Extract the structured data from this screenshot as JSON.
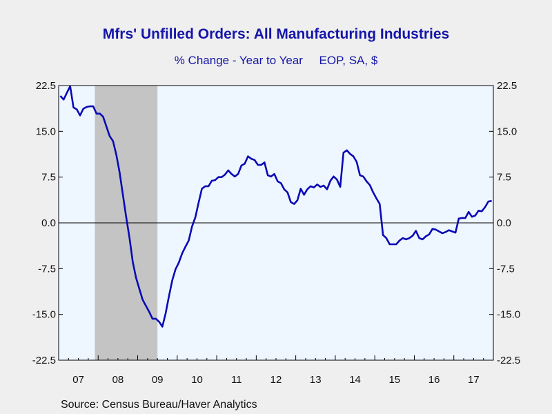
{
  "header": {
    "title": "Mfrs' Unfilled Orders: All Manufacturing Industries",
    "subtitle": "% Change - Year to Year     EOP, SA, $"
  },
  "footer": {
    "source": "Source:  Census Bureau/Haver Analytics"
  },
  "colors": {
    "background": "#efefef",
    "plot_background": "#eef6ff",
    "line": "#0a0ab4",
    "recession_shading": "#c4c4c4",
    "title": "#1515a8"
  },
  "chart_data": {
    "type": "line",
    "title": "Mfrs' Unfilled Orders: All Manufacturing Industries",
    "subtitle": "% Change - Year to Year     EOP, SA, $",
    "xlabel": "",
    "ylabel": "",
    "ylim": [
      -22.5,
      22.5
    ],
    "y_ticks": [
      22.5,
      15.0,
      7.5,
      0.0,
      -7.5,
      -15.0,
      -22.5
    ],
    "y_tick_labels": [
      "22.5",
      "15.0",
      "7.5",
      "0.0",
      "-7.5",
      "-15.0",
      "-22.5"
    ],
    "y_axis_both_sides": true,
    "zero_line": true,
    "x_range": [
      "2007-01",
      "2017-12"
    ],
    "x_tick_labels": [
      "07",
      "08",
      "09",
      "10",
      "11",
      "12",
      "13",
      "14",
      "15",
      "16",
      "17"
    ],
    "shaded_regions": [
      {
        "start": "2007-12",
        "end": "2009-06"
      }
    ],
    "series": [
      {
        "x": [
          "2007-01",
          "2007-02",
          "2007-03",
          "2007-04",
          "2007-05",
          "2007-06",
          "2007-07",
          "2007-08",
          "2007-09",
          "2007-10",
          "2007-11",
          "2007-12",
          "2008-01",
          "2008-02",
          "2008-03",
          "2008-04",
          "2008-05",
          "2008-06",
          "2008-07",
          "2008-08",
          "2008-09",
          "2008-10",
          "2008-11",
          "2008-12",
          "2009-01",
          "2009-02",
          "2009-03",
          "2009-04",
          "2009-05",
          "2009-06",
          "2009-07",
          "2009-08",
          "2009-09",
          "2009-10",
          "2009-11",
          "2009-12",
          "2010-01",
          "2010-02",
          "2010-03",
          "2010-04",
          "2010-05",
          "2010-06",
          "2010-07",
          "2010-08",
          "2010-09",
          "2010-10",
          "2010-11",
          "2010-12",
          "2011-01",
          "2011-02",
          "2011-03",
          "2011-04",
          "2011-05",
          "2011-06",
          "2011-07",
          "2011-08",
          "2011-09",
          "2011-10",
          "2011-11",
          "2011-12",
          "2012-01",
          "2012-02",
          "2012-03",
          "2012-04",
          "2012-05",
          "2012-06",
          "2012-07",
          "2012-08",
          "2012-09",
          "2012-10",
          "2012-11",
          "2012-12",
          "2013-01",
          "2013-02",
          "2013-03",
          "2013-04",
          "2013-05",
          "2013-06",
          "2013-07",
          "2013-08",
          "2013-09",
          "2013-10",
          "2013-11",
          "2013-12",
          "2014-01",
          "2014-02",
          "2014-03",
          "2014-04",
          "2014-05",
          "2014-06",
          "2014-07",
          "2014-08",
          "2014-09",
          "2014-10",
          "2014-11",
          "2014-12",
          "2015-01",
          "2015-02",
          "2015-03",
          "2015-04",
          "2015-05",
          "2015-06",
          "2015-07",
          "2015-08",
          "2015-09",
          "2015-10",
          "2015-11",
          "2015-12",
          "2016-01",
          "2016-02",
          "2016-03",
          "2016-04",
          "2016-05",
          "2016-06",
          "2016-07",
          "2016-08",
          "2016-09",
          "2016-10",
          "2016-11",
          "2016-12",
          "2017-01",
          "2017-02",
          "2017-03",
          "2017-04",
          "2017-05",
          "2017-06",
          "2017-07",
          "2017-08",
          "2017-09",
          "2017-10",
          "2017-11",
          "2017-12"
        ],
        "values": [
          20.8,
          20.2,
          21.3,
          22.4,
          18.9,
          18.6,
          17.6,
          18.7,
          19.0,
          19.1,
          19.1,
          17.9,
          17.9,
          17.4,
          15.8,
          14.2,
          13.4,
          11.2,
          8.3,
          4.6,
          1.0,
          -2.4,
          -6.4,
          -9.0,
          -10.8,
          -12.6,
          -13.6,
          -14.6,
          -15.7,
          -15.7,
          -16.2,
          -17.0,
          -14.8,
          -12.0,
          -9.4,
          -7.6,
          -6.5,
          -5.0,
          -3.9,
          -2.9,
          -0.6,
          0.9,
          3.3,
          5.6,
          6.0,
          6.0,
          6.9,
          7.0,
          7.5,
          7.5,
          7.9,
          8.6,
          8.0,
          7.6,
          8.0,
          9.4,
          9.7,
          10.9,
          10.5,
          10.3,
          9.5,
          9.5,
          9.9,
          7.8,
          7.6,
          8.0,
          6.8,
          6.5,
          5.5,
          5.0,
          3.4,
          3.1,
          3.7,
          5.6,
          4.6,
          5.5,
          6.0,
          5.8,
          6.3,
          5.9,
          6.1,
          5.5,
          6.9,
          7.6,
          7.1,
          5.9,
          11.5,
          11.9,
          11.3,
          10.9,
          10.0,
          7.8,
          7.6,
          6.8,
          6.2,
          5.0,
          4.0,
          3.1,
          -2.0,
          -2.5,
          -3.5,
          -3.5,
          -3.5,
          -2.9,
          -2.5,
          -2.7,
          -2.5,
          -2.1,
          -1.3,
          -2.5,
          -2.7,
          -2.2,
          -1.9,
          -1.0,
          -1.1,
          -1.4,
          -1.7,
          -1.5,
          -1.2,
          -1.4,
          -1.6,
          0.7,
          0.8,
          0.8,
          1.8,
          1.0,
          1.2,
          2.0,
          1.9,
          2.6,
          3.5,
          3.6
        ]
      }
    ]
  }
}
